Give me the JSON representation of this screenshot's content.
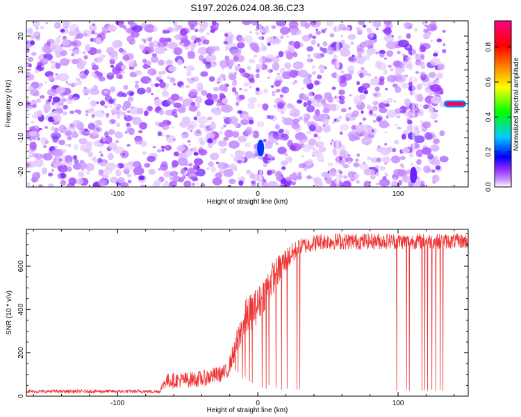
{
  "chart_data": [
    {
      "type": "heatmap",
      "title": "S197.2026.024.08.36.C23",
      "xlabel": "Height of straight line (km)",
      "ylabel": "Frequency (Hz)",
      "xlim": [
        -165,
        150
      ],
      "ylim": [
        -24.5,
        24.5
      ],
      "xticks": [
        -100,
        0,
        100
      ],
      "xtick_labels": [
        "-100",
        "0",
        "100"
      ],
      "yticks": [
        -20,
        -10,
        0,
        10,
        20
      ],
      "ytick_labels": [
        "-20",
        "-10",
        "0",
        "10",
        "20"
      ],
      "colorbar": {
        "label": "Normalized spectral amplitude",
        "range": [
          0,
          0.95
        ],
        "ticks": [
          0.0,
          0.2,
          0.4,
          0.6,
          0.8
        ],
        "tick_labels": [
          "0.0",
          "0.2",
          "0.4",
          "0.6",
          "0.8"
        ],
        "colors": [
          "#ffffff",
          "#cc99ff",
          "#9933ff",
          "#0000ff",
          "#00ccff",
          "#00ff00",
          "#ffff00",
          "#ff8800",
          "#ff0000",
          "#ff0088"
        ]
      },
      "background_amplitude_range": [
        0.02,
        0.12
      ],
      "vertical_streaks_x": [
        2,
        57,
        111
      ],
      "features": [
        {
          "x": 2,
          "y": -13,
          "amplitude": 0.2
        },
        {
          "x": 111,
          "y": -21,
          "amplitude": 0.12
        },
        {
          "x_start": 133,
          "x_end": 148,
          "y": 0,
          "amplitude": 0.9
        }
      ],
      "grid": false
    },
    {
      "type": "line",
      "xlabel": "Height of straight line (km)",
      "ylabel": "SNR (10 * v/v)",
      "xlim": [
        -165,
        150
      ],
      "ylim": [
        0,
        770
      ],
      "xticks": [
        -100,
        0,
        100
      ],
      "xtick_labels": [
        "-100",
        "0",
        "100"
      ],
      "yticks": [
        0,
        200,
        400,
        600
      ],
      "ytick_labels": [
        "0",
        "200",
        "400",
        "600"
      ],
      "color": "#ee3333",
      "profile": [
        {
          "x": -165,
          "y": 22
        },
        {
          "x": -70,
          "y": 22
        },
        {
          "x": -66,
          "y": 70
        },
        {
          "x": -40,
          "y": 80
        },
        {
          "x": -22,
          "y": 110
        },
        {
          "x": -14,
          "y": 260
        },
        {
          "x": -8,
          "y": 370
        },
        {
          "x": 0,
          "y": 420
        },
        {
          "x": 10,
          "y": 540
        },
        {
          "x": 20,
          "y": 630
        },
        {
          "x": 30,
          "y": 690
        },
        {
          "x": 45,
          "y": 715
        },
        {
          "x": 150,
          "y": 715
        }
      ],
      "noise_amplitude": [
        {
          "x": -165,
          "amp": 8
        },
        {
          "x": -70,
          "amp": 8
        },
        {
          "x": -66,
          "amp": 35
        },
        {
          "x": -20,
          "amp": 40
        },
        {
          "x": -10,
          "amp": 90
        },
        {
          "x": 10,
          "amp": 80
        },
        {
          "x": 30,
          "amp": 40
        },
        {
          "x": 150,
          "amp": 35
        }
      ],
      "dropouts": [
        {
          "x": -16,
          "y": 120
        },
        {
          "x": -14,
          "y": 110
        },
        {
          "x": -11,
          "y": 80
        },
        {
          "x": -9,
          "y": 90
        },
        {
          "x": -6,
          "y": 70
        },
        {
          "x": -4,
          "y": 60
        },
        {
          "x": 3,
          "y": 40
        },
        {
          "x": 6,
          "y": 35
        },
        {
          "x": 8,
          "y": 50
        },
        {
          "x": 13,
          "y": 40
        },
        {
          "x": 17,
          "y": 30
        },
        {
          "x": 21,
          "y": 35
        },
        {
          "x": 28,
          "y": 30
        },
        {
          "x": 30,
          "y": 30
        },
        {
          "x": 99,
          "y": 25
        },
        {
          "x": 106,
          "y": 30
        },
        {
          "x": 108,
          "y": 25
        },
        {
          "x": 117,
          "y": 25
        },
        {
          "x": 119,
          "y": 30
        },
        {
          "x": 121,
          "y": 25
        },
        {
          "x": 124,
          "y": 30
        },
        {
          "x": 127,
          "y": 25
        },
        {
          "x": 130,
          "y": 30
        },
        {
          "x": 132,
          "y": 25
        }
      ],
      "grid": false
    }
  ]
}
